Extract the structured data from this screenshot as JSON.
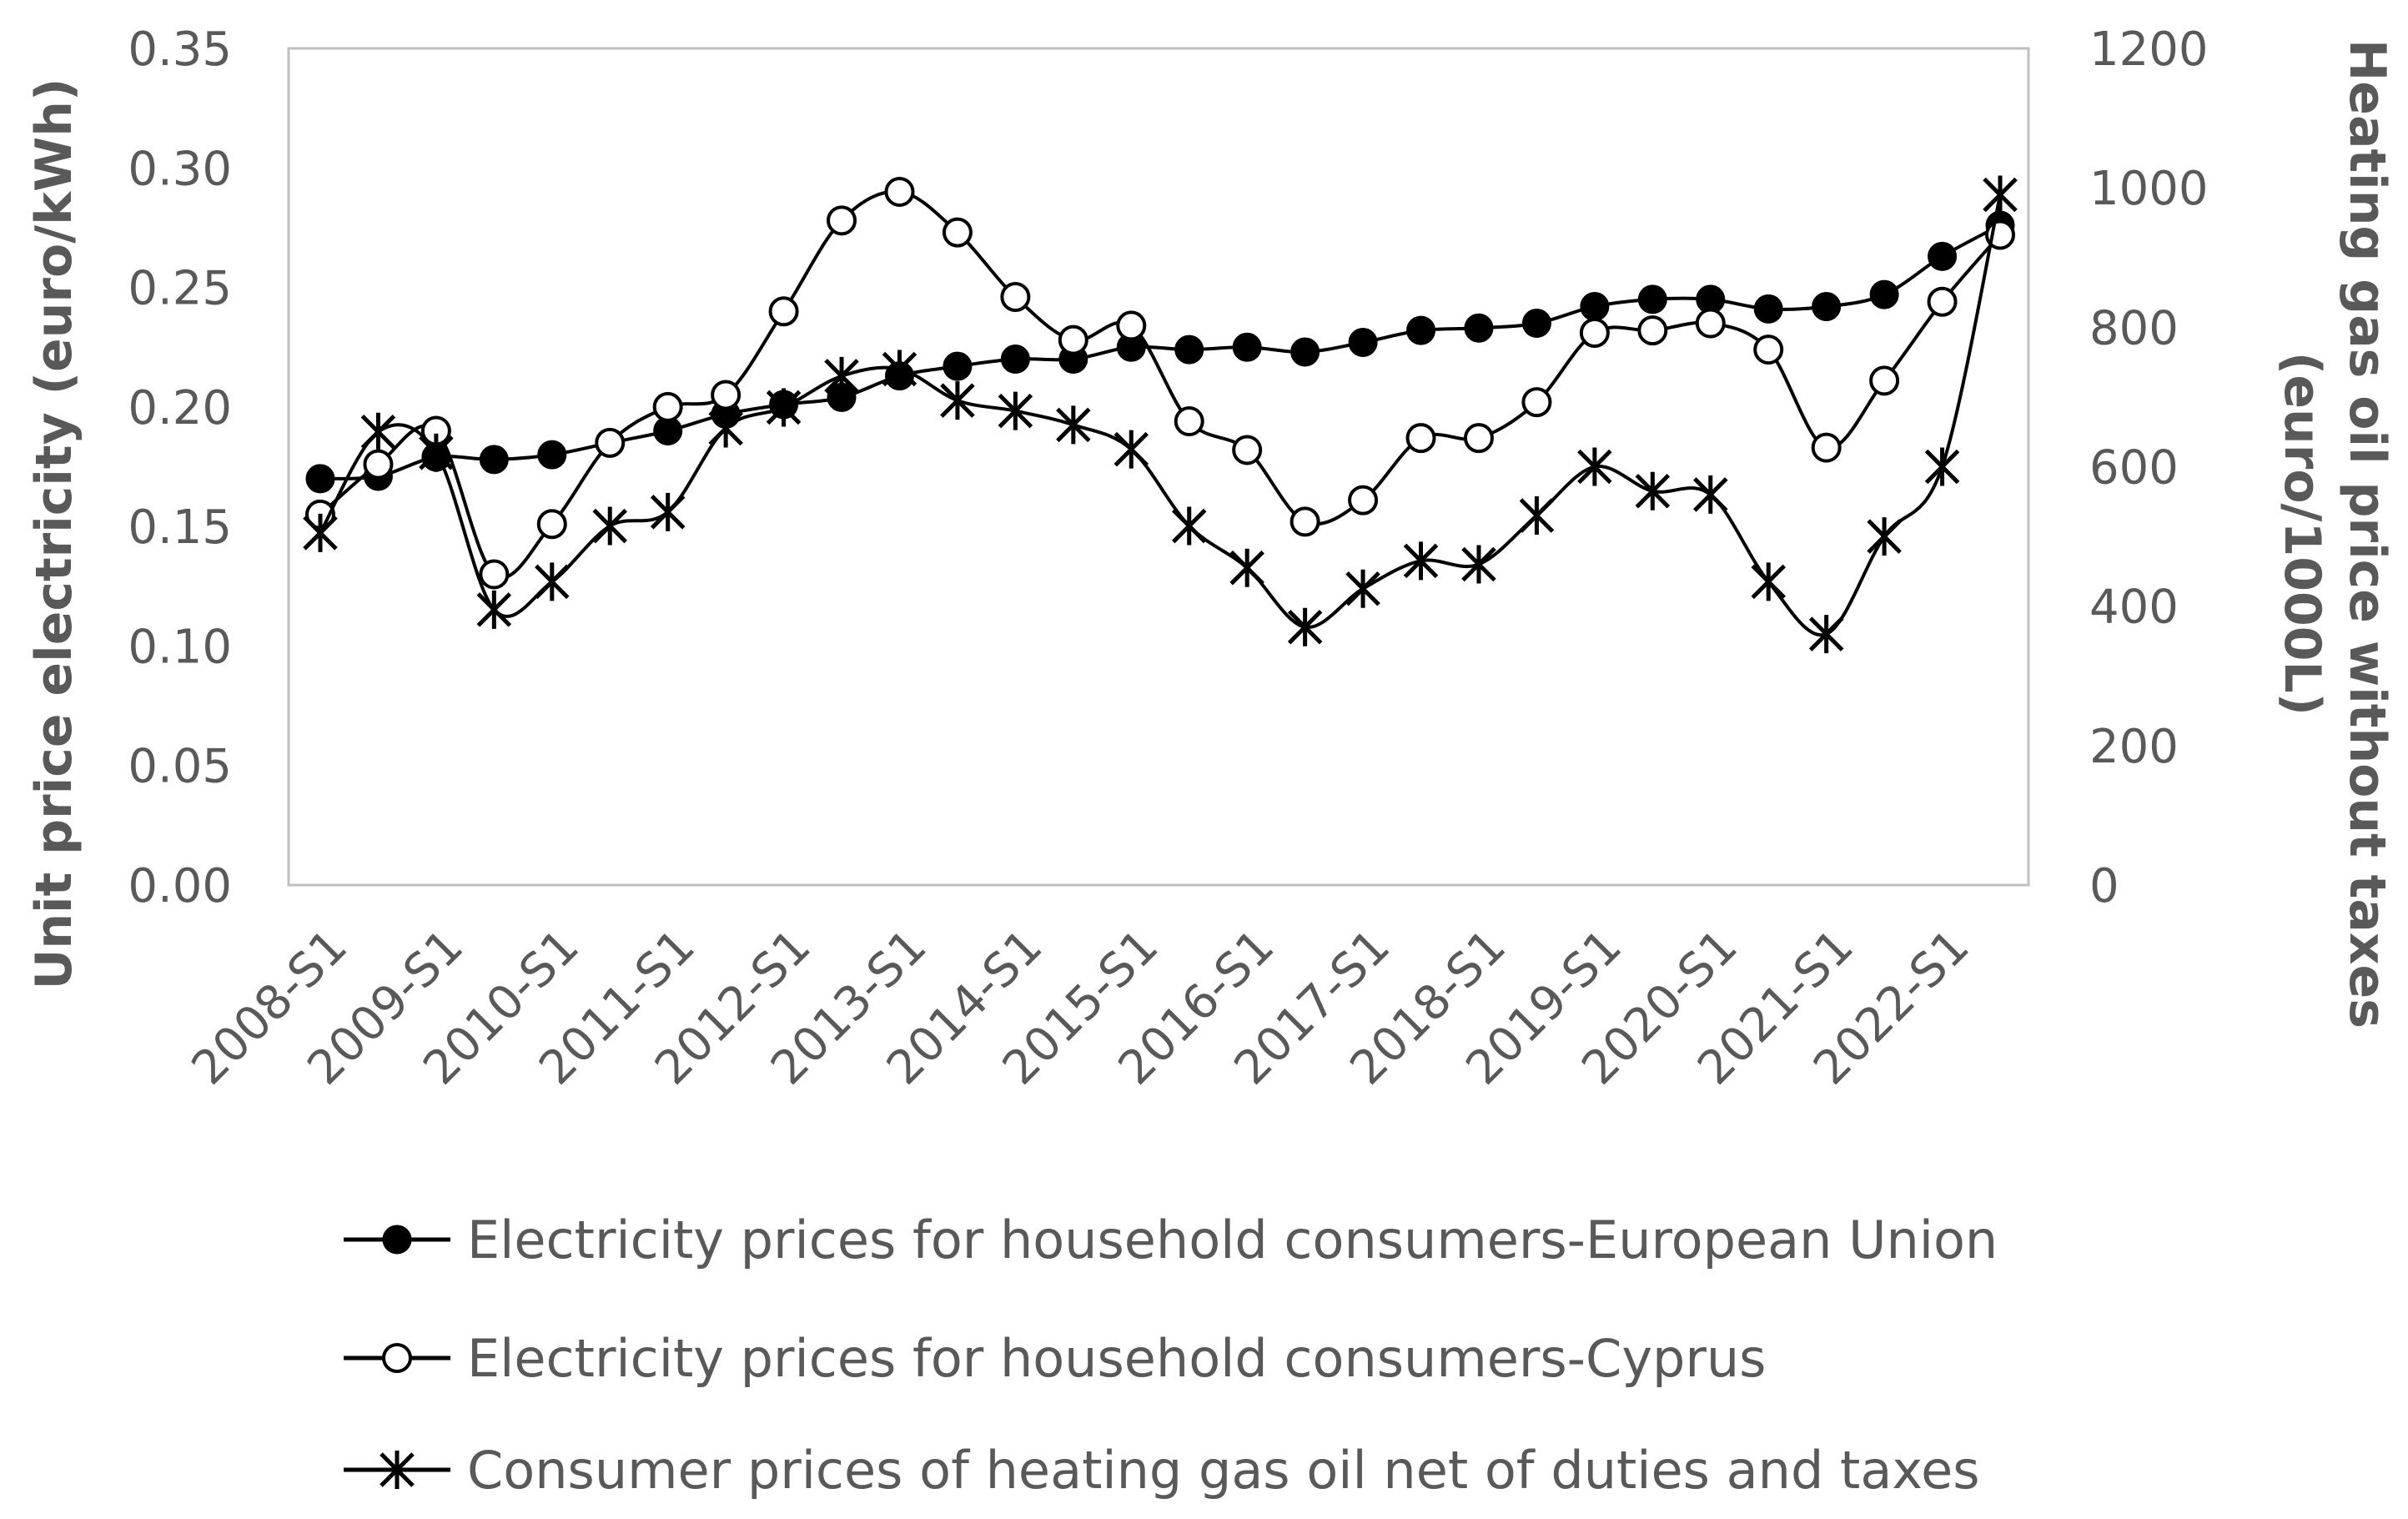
{
  "chart_data": {
    "type": "line",
    "title": "",
    "x": [
      "2008-S1",
      "2008-S2",
      "2009-S1",
      "2009-S2",
      "2010-S1",
      "2010-S2",
      "2011-S1",
      "2011-S2",
      "2012-S1",
      "2012-S2",
      "2013-S1",
      "2013-S2",
      "2014-S1",
      "2014-S2",
      "2015-S1",
      "2015-S2",
      "2016-S1",
      "2016-S2",
      "2017-S1",
      "2017-S2",
      "2018-S1",
      "2018-S2",
      "2019-S1",
      "2019-S2",
      "2020-S1",
      "2020-S2",
      "2021-S1",
      "2021-S2",
      "2022-S1",
      "2022-S2"
    ],
    "x_tick_labels": [
      "2008-S1",
      "2009-S1",
      "2010-S1",
      "2011-S1",
      "2012-S1",
      "2013-S1",
      "2014-S1",
      "2015-S1",
      "2016-S1",
      "2017-S1",
      "2018-S1",
      "2019-S1",
      "2020-S1",
      "2021-S1",
      "2022-S1"
    ],
    "ylabel": "Unit price electricity (euro/kWh)",
    "ylabel_right_line1": "Heating gas oil price without taxes",
    "ylabel_right_line2": "(euro/1000L)",
    "ylim": [
      0,
      0.35
    ],
    "ylim_right": [
      0,
      1200
    ],
    "y_ticks": [
      "0.00",
      "0.05",
      "0.10",
      "0.15",
      "0.20",
      "0.25",
      "0.30",
      "0.35"
    ],
    "y_ticks_right": [
      "0",
      "200",
      "400",
      "600",
      "800",
      "1000",
      "1200"
    ],
    "series": [
      {
        "name": "Electricity prices for household consumers-European Union",
        "axis": "left",
        "marker": "filled-circle",
        "values": [
          0.17,
          0.171,
          0.179,
          0.178,
          0.18,
          0.185,
          0.19,
          0.197,
          0.201,
          0.204,
          0.213,
          0.217,
          0.22,
          0.22,
          0.225,
          0.224,
          0.225,
          0.223,
          0.227,
          0.232,
          0.233,
          0.235,
          0.242,
          0.245,
          0.245,
          0.241,
          0.242,
          0.247,
          0.263,
          0.276
        ]
      },
      {
        "name": "Electricity prices for household consumers-Cyprus",
        "axis": "left",
        "marker": "open-circle",
        "values": [
          0.155,
          0.176,
          0.19,
          0.13,
          0.151,
          0.185,
          0.2,
          0.205,
          0.24,
          0.278,
          0.29,
          0.273,
          0.246,
          0.228,
          0.234,
          0.194,
          0.182,
          0.152,
          0.161,
          0.187,
          0.187,
          0.202,
          0.231,
          0.232,
          0.235,
          0.224,
          0.183,
          0.211,
          0.244,
          0.272
        ]
      },
      {
        "name": "Consumer prices of heating gas oil net of duties and taxes",
        "axis": "right",
        "marker": "asterisk",
        "values": [
          505,
          650,
          620,
          395,
          435,
          515,
          535,
          655,
          685,
          730,
          740,
          695,
          680,
          660,
          625,
          515,
          455,
          370,
          425,
          465,
          460,
          530,
          600,
          565,
          560,
          435,
          360,
          500,
          600,
          990
        ]
      }
    ]
  }
}
